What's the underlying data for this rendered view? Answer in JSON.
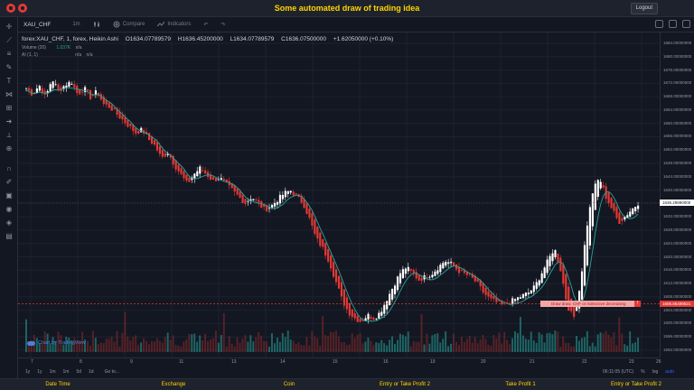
{
  "header": {
    "title": "Some automated draw of trading idea",
    "logout_label": "Logout"
  },
  "toolbar": {
    "symbol": "XAU_CHF",
    "interval": "1m",
    "compare_label": "Compare",
    "indicators_label": "Indicators"
  },
  "legend": {
    "title_line": "forex:XAU_CHF, 1, forex, Heikin Ashi",
    "open": "O1634.07789579",
    "high": "H1636.45200000",
    "low": "L1634.07789579",
    "close": "C1636.07500000",
    "change": "+1.62050000 (+0.10%)",
    "volume_label": "Volume (20)",
    "volume_value": "1.037K",
    "volume_na": "n/a",
    "ai_label": "AI (1, 1)",
    "ai_na1": "n/a",
    "ai_na2": "n/a"
  },
  "price_axis": [
    "1684.00000000",
    "1680.00000000",
    "1676.00000000",
    "1672.00000000",
    "1668.00000000",
    "1664.00000000",
    "1660.00000000",
    "1656.00000000",
    "1652.00000000",
    "1648.00000000",
    "1644.00000000",
    "1640.00000000",
    "1636.00000000",
    "1632.00000000",
    "1628.00000000",
    "1624.00000000",
    "1620.00000000",
    "1616.00000000",
    "1612.00000000",
    "1608.00000000",
    "1604.00000000",
    "1600.00000000",
    "1596.00000000",
    "1592.00000000"
  ],
  "price_tags": {
    "current": "1636.29890000",
    "line": "1606.85489521"
  },
  "draw_label": "Draw draw, CHF or indecisive decreasing",
  "draw_label_marker": "!",
  "watermark": "Chart by TradingView",
  "time_axis": [
    "7",
    "8",
    "9",
    "11",
    "13",
    "14",
    "15",
    "16",
    "19",
    "20",
    "21",
    "22",
    "23",
    "26"
  ],
  "bottom_toolbar": {
    "ranges": [
      "1y",
      "1y",
      "1m",
      "1m",
      "5d",
      "1d"
    ],
    "goto": "Go to...",
    "time": "06:11:05 (UTC)",
    "pct": "%",
    "log": "log",
    "auto": "auto"
  },
  "footer": [
    "Date Time",
    "Exchange",
    "Coin",
    "Entry or Take Profit 2",
    "Take Profit 1",
    "Entry or Take Profit 2"
  ],
  "colors": {
    "up": "#ffffff",
    "down": "#e53935",
    "ma": "#26a69a",
    "accent": "#ffd400"
  },
  "chart_data": {
    "type": "candlestick",
    "price_range": [
      1590,
      1686
    ],
    "close_series": [
      1672,
      1670,
      1673,
      1669,
      1675,
      1671,
      1673,
      1674,
      1670,
      1672,
      1669,
      1671,
      1667,
      1666,
      1664,
      1662,
      1660,
      1658,
      1659,
      1656,
      1654,
      1650,
      1652,
      1648,
      1645,
      1642,
      1645,
      1647,
      1645,
      1643,
      1644,
      1642,
      1640,
      1638,
      1636,
      1638,
      1636,
      1634,
      1635,
      1637,
      1639,
      1640,
      1638,
      1636,
      1631,
      1625,
      1622,
      1618,
      1612,
      1606,
      1602,
      1600,
      1599,
      1601,
      1600,
      1602,
      1606,
      1610,
      1614,
      1616,
      1614,
      1612,
      1613,
      1614,
      1616,
      1618,
      1617,
      1615,
      1614,
      1613,
      1611,
      1608,
      1606,
      1605,
      1604,
      1605,
      1606,
      1607,
      1608,
      1610,
      1614,
      1618,
      1622,
      1615,
      1604,
      1600,
      1610,
      1628,
      1640,
      1644,
      1638,
      1634,
      1630,
      1632,
      1634,
      1636
    ]
  }
}
